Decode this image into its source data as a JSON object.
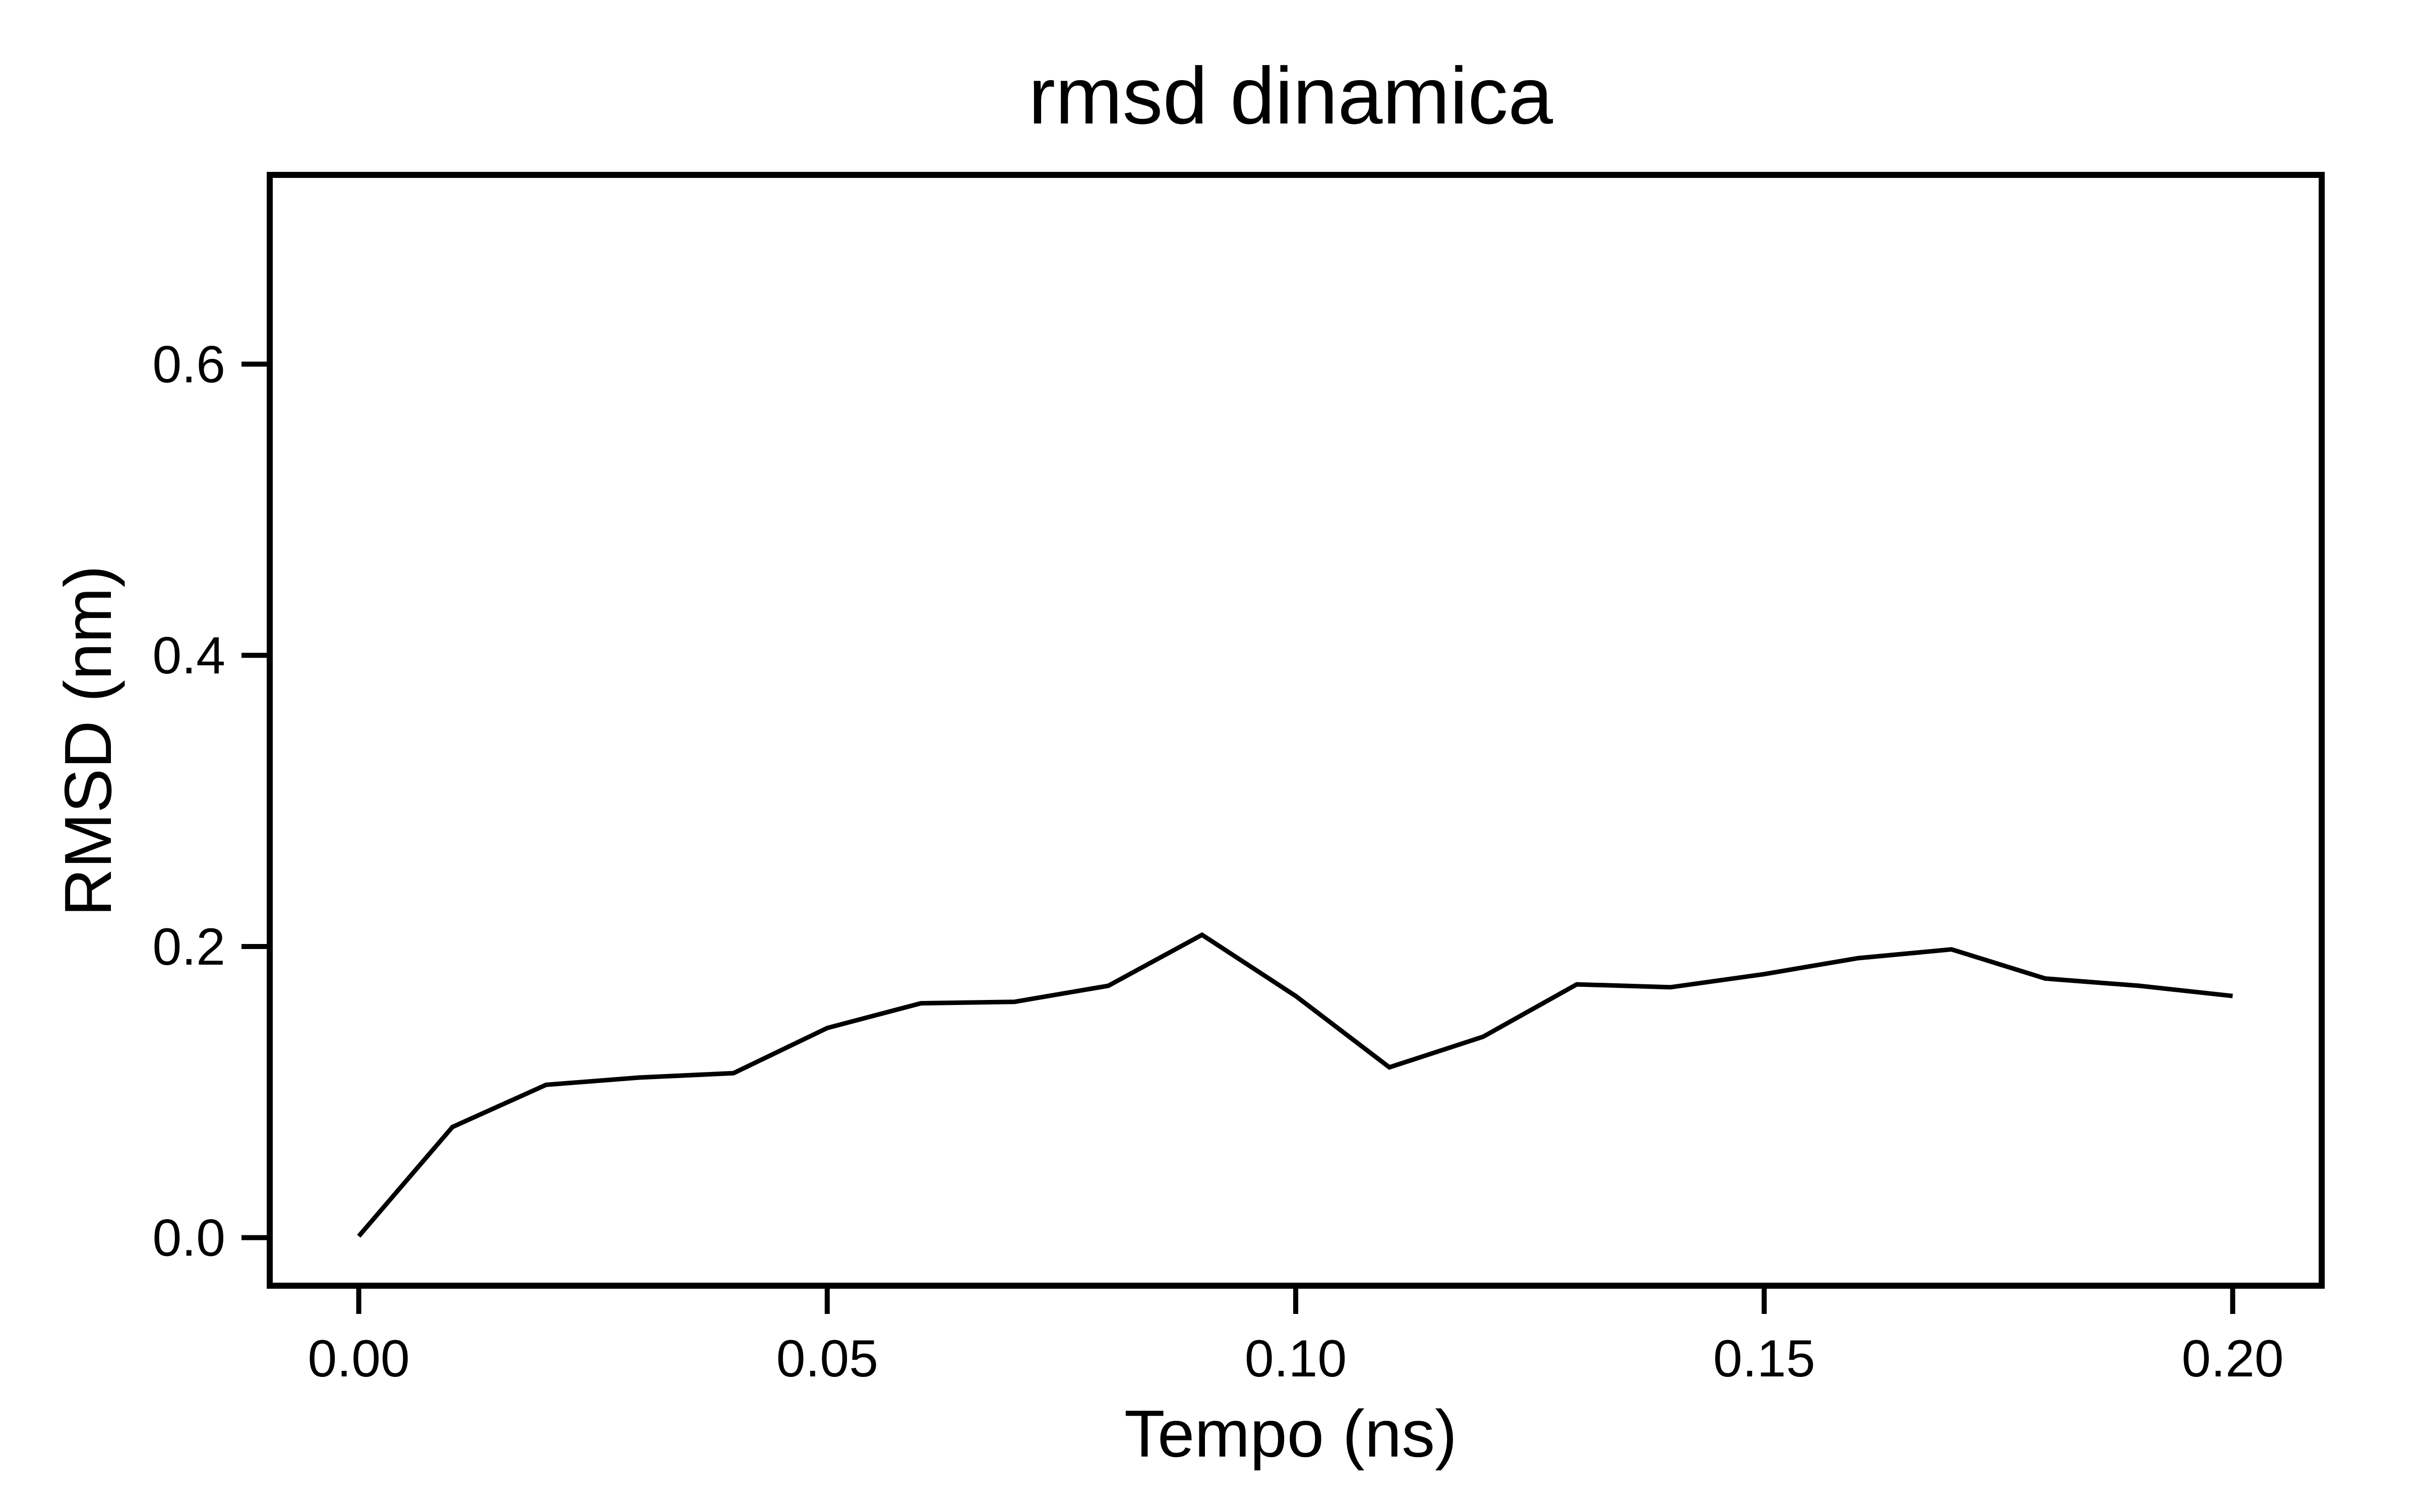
{
  "chart_data": {
    "type": "line",
    "title": "rmsd dinamica",
    "xlabel": "Tempo (ns)",
    "ylabel": "RMSD (nm)",
    "xlim": [
      -0.0095,
      0.2095
    ],
    "ylim": [
      -0.033,
      0.73
    ],
    "xticks": [
      "0.00",
      "0.05",
      "0.10",
      "0.15",
      "0.20"
    ],
    "yticks": [
      "0.0",
      "0.2",
      "0.4",
      "0.6"
    ],
    "grid": false,
    "series": [
      {
        "color": "#000000",
        "x": [
          0.0,
          0.01,
          0.02,
          0.03,
          0.04,
          0.05,
          0.06,
          0.07,
          0.08,
          0.09,
          0.1,
          0.11,
          0.12,
          0.13,
          0.14,
          0.15,
          0.16,
          0.17,
          0.18,
          0.19,
          0.2
        ],
        "y": [
          0.001,
          0.076,
          0.105,
          0.11,
          0.113,
          0.144,
          0.161,
          0.162,
          0.173,
          0.208,
          0.166,
          0.117,
          0.138,
          0.174,
          0.172,
          0.181,
          0.192,
          0.198,
          0.178,
          0.173,
          0.166
        ]
      }
    ]
  }
}
